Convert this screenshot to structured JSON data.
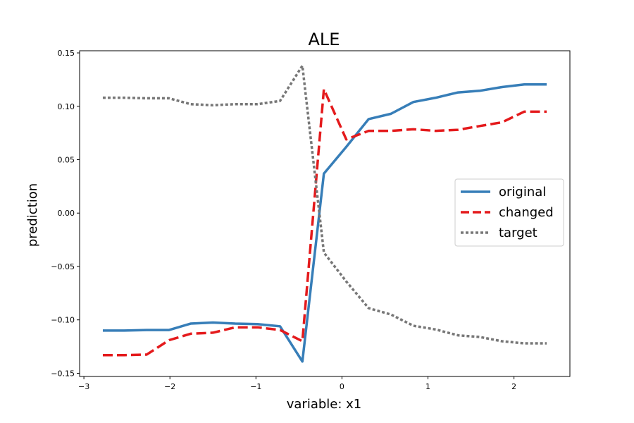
{
  "chart_data": {
    "type": "line",
    "title": "ALE",
    "xlabel": "variable: x1",
    "ylabel": "prediction",
    "xlim": [
      -3.05,
      2.65
    ],
    "ylim": [
      -0.153,
      0.152
    ],
    "xticks": [
      -3,
      -2,
      -1,
      0,
      1,
      2
    ],
    "xtick_labels": [
      "−3",
      "−2",
      "−1",
      "0",
      "1",
      "2"
    ],
    "yticks": [
      -0.15,
      -0.1,
      -0.05,
      0.0,
      0.05,
      0.1,
      0.15
    ],
    "ytick_labels": [
      "−0.15",
      "−0.10",
      "−0.05",
      "0.00",
      "0.05",
      "0.10",
      "0.15"
    ],
    "grid": false,
    "legend_position": "center-right",
    "x": [
      -2.78,
      -2.53,
      -2.27,
      -2.01,
      -1.76,
      -1.5,
      -1.24,
      -0.98,
      -0.72,
      -0.46,
      -0.21,
      0.05,
      0.31,
      0.57,
      0.83,
      1.09,
      1.35,
      1.6,
      1.86,
      2.12,
      2.38
    ],
    "series": [
      {
        "name": "original",
        "color": "#377eb8",
        "style": "solid",
        "values": [
          -0.11,
          -0.11,
          -0.1095,
          -0.1095,
          -0.1035,
          -0.1025,
          -0.1035,
          -0.104,
          -0.106,
          -0.139,
          0.037,
          0.062,
          0.088,
          0.093,
          0.104,
          0.108,
          0.113,
          0.1145,
          0.118,
          0.1205,
          0.1205
        ]
      },
      {
        "name": "changed",
        "color": "#e41a1c",
        "style": "dashed",
        "values": [
          -0.133,
          -0.133,
          -0.1325,
          -0.119,
          -0.113,
          -0.112,
          -0.107,
          -0.107,
          -0.1095,
          -0.12,
          0.116,
          0.069,
          0.077,
          0.077,
          0.0785,
          0.077,
          0.078,
          0.0815,
          0.085,
          0.095,
          0.095
        ]
      },
      {
        "name": "target",
        "color": "#777777",
        "style": "dotted",
        "values": [
          0.108,
          0.108,
          0.1075,
          0.1075,
          0.102,
          0.101,
          0.102,
          0.102,
          0.105,
          0.138,
          -0.037,
          -0.064,
          -0.089,
          -0.095,
          -0.1055,
          -0.109,
          -0.1145,
          -0.116,
          -0.12,
          -0.122,
          -0.122
        ]
      }
    ]
  }
}
